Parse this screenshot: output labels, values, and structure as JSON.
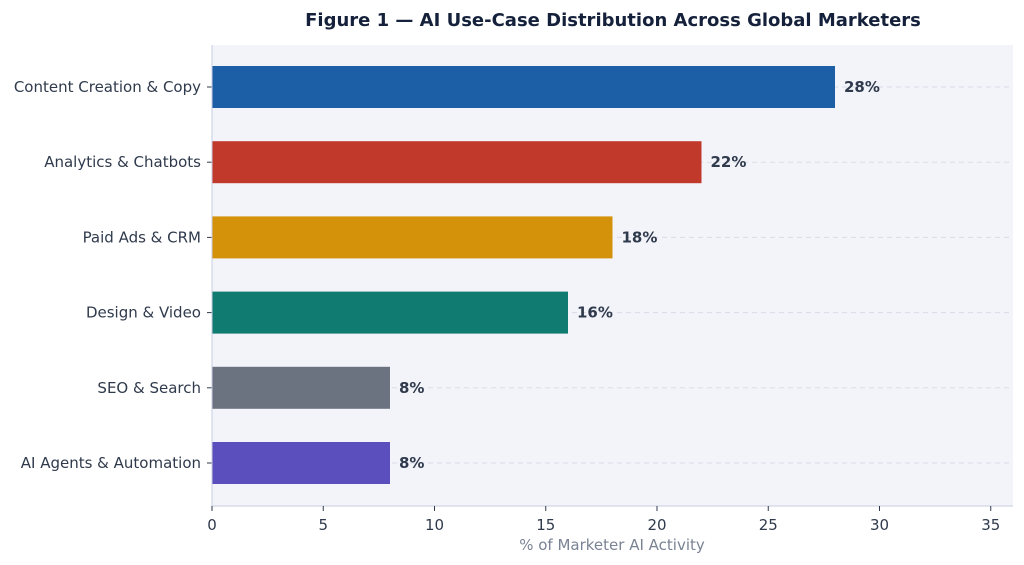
{
  "chart_data": {
    "type": "bar",
    "orientation": "horizontal",
    "title": "Figure 1 — AI Use-Case Distribution Across Global Marketers",
    "xlabel": "% of Marketer AI Activity",
    "ylabel": "",
    "xlim": [
      0,
      36
    ],
    "xticks": [
      0,
      5,
      10,
      15,
      20,
      25,
      30,
      35
    ],
    "grid": "x-dashed",
    "categories": [
      "Content Creation & Copy",
      "Analytics & Chatbots",
      "Paid Ads & CRM",
      "Design & Video",
      "SEO & Search",
      "AI Agents & Automation"
    ],
    "values": [
      28,
      22,
      18,
      16,
      8,
      8
    ],
    "value_labels": [
      "28%",
      "22%",
      "18%",
      "16%",
      "8%",
      "8%"
    ],
    "colors": [
      "#1c5fa6",
      "#c0392b",
      "#d4920a",
      "#107c71",
      "#6b7280",
      "#5b4fbe"
    ]
  },
  "style": {
    "plot_background": "#f3f4fa",
    "axis_color": "#c7cbe0",
    "grid_color": "#d9dce8"
  }
}
